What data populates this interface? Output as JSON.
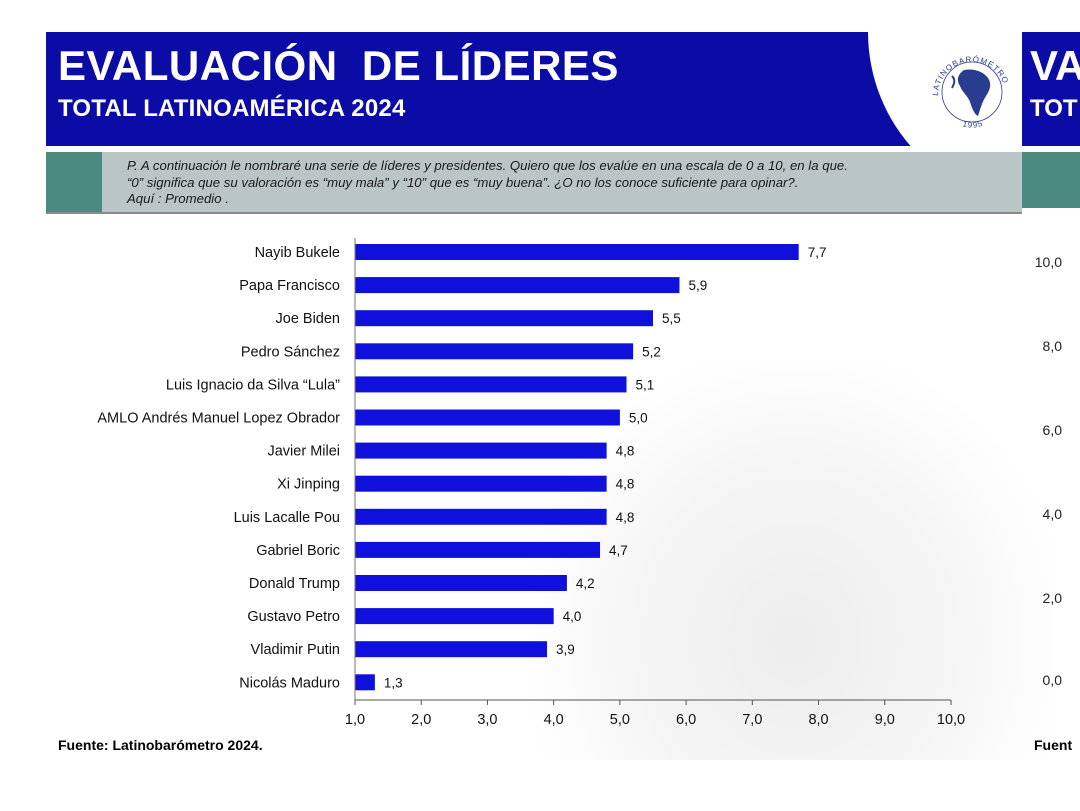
{
  "header": {
    "title": "EVALUACIÓN  DE LÍDERES",
    "subtitle": "TOTAL LATINOAMÉRICA 2024",
    "logo_text_top": "LATINOBARÓMETRO",
    "logo_text_bottom": "1995"
  },
  "question": {
    "line1": "P. A continuación le nombraré una serie de líderes y presidentes. Quiero que los evalúe en una escala de 0 a 10, en la que.",
    "line2": "“0” significa que su valoración es “muy mala” y “10” que es “muy buena”. ¿O no los conoce suficiente para opinar?.",
    "line3": "Aquí : Promedio ."
  },
  "source": "Fuente: Latinobarómetro 2024.",
  "right_panel": {
    "title_fragment": "VA",
    "subtitle_fragment": "TOT",
    "source_fragment": "Fuent",
    "axis_ticks": [
      "10,0",
      "8,0",
      "6,0",
      "4,0",
      "2,0",
      "0,0"
    ]
  },
  "colors": {
    "header_blue": "#0b0ca6",
    "bar": "#1010dd",
    "question_bg": "#b9c6c5",
    "accent_teal": "#4b8a80"
  },
  "chart_data": {
    "type": "bar",
    "orientation": "horizontal",
    "categories": [
      "Nayib Bukele",
      "Papa Francisco",
      "Joe Biden",
      "Pedro Sánchez",
      "Luis Ignacio  da Silva “Lula”",
      "AMLO Andrés Manuel Lopez Obrador",
      "Javier Milei",
      "Xi Jinping",
      "Luis Lacalle Pou",
      "Gabriel Boric",
      "Donald Trump",
      "Gustavo Petro",
      "Vladimir Putin",
      "Nicolás Maduro"
    ],
    "values": [
      7.7,
      5.9,
      5.5,
      5.2,
      5.1,
      5.0,
      4.8,
      4.8,
      4.8,
      4.7,
      4.2,
      4.0,
      3.9,
      1.3
    ],
    "value_labels": [
      "7,7",
      "5,9",
      "5,5",
      "5,2",
      "5,1",
      "5,0",
      "4,8",
      "4,8",
      "4,8",
      "4,7",
      "4,2",
      "4,0",
      "3,9",
      "1,3"
    ],
    "xlim": [
      1.0,
      10.0
    ],
    "xticks": [
      1,
      2,
      3,
      4,
      5,
      6,
      7,
      8,
      9,
      10
    ],
    "xtick_labels": [
      "1,0",
      "2,0",
      "3,0",
      "4,0",
      "5,0",
      "6,0",
      "7,0",
      "8,0",
      "9,0",
      "10,0"
    ],
    "grid": false,
    "legend": "none"
  }
}
